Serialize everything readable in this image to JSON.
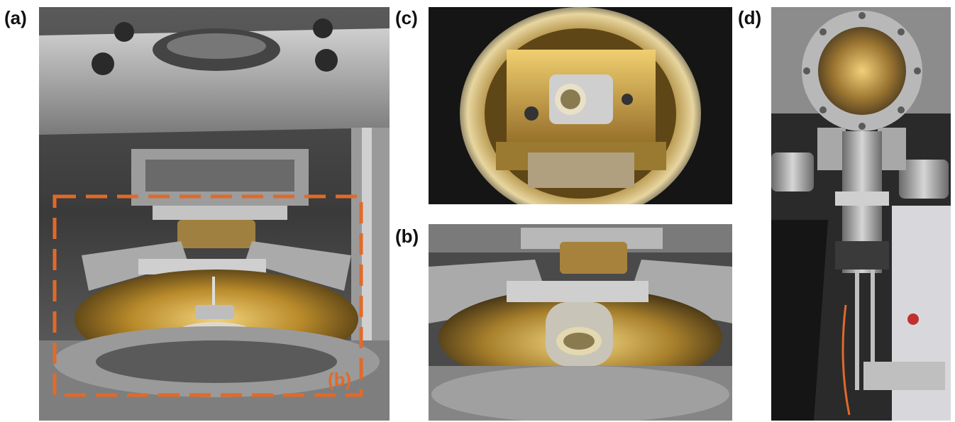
{
  "figure": {
    "panels": [
      {
        "id": "a",
        "label": "(a)",
        "inset_label": "(b)",
        "photo": "stm-head-grayscale-with-gold-tip-area"
      },
      {
        "id": "c",
        "label": "(c)",
        "photo": "view-through-viewport-gold-sample-stage"
      },
      {
        "id": "b",
        "label": "(b)",
        "photo": "closeup-sample-holder-gold"
      },
      {
        "id": "d",
        "label": "(d)",
        "photo": "uhv-chamber-with-flanges-and-manipulator"
      }
    ],
    "colors": {
      "inset_box": "#e06a2a",
      "gold": "#c8a040",
      "metal": "#8a8a8a",
      "background": "#ffffff"
    }
  }
}
